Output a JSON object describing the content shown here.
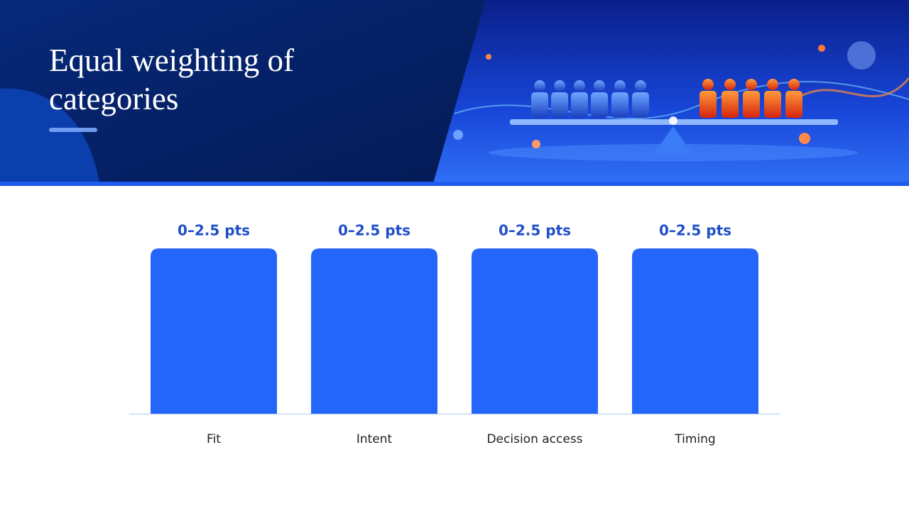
{
  "chart_data": {
    "type": "bar",
    "title": "Equal weighting of categories",
    "categories": [
      "Fit",
      "Intent",
      "Decision access",
      "Timing"
    ],
    "values": [
      2.5,
      2.5,
      2.5,
      2.5
    ],
    "value_labels": [
      "0–2.5 pts",
      "0–2.5 pts",
      "0–2.5 pts",
      "0–2.5 pts"
    ],
    "color": "#2466f9"
  }
}
